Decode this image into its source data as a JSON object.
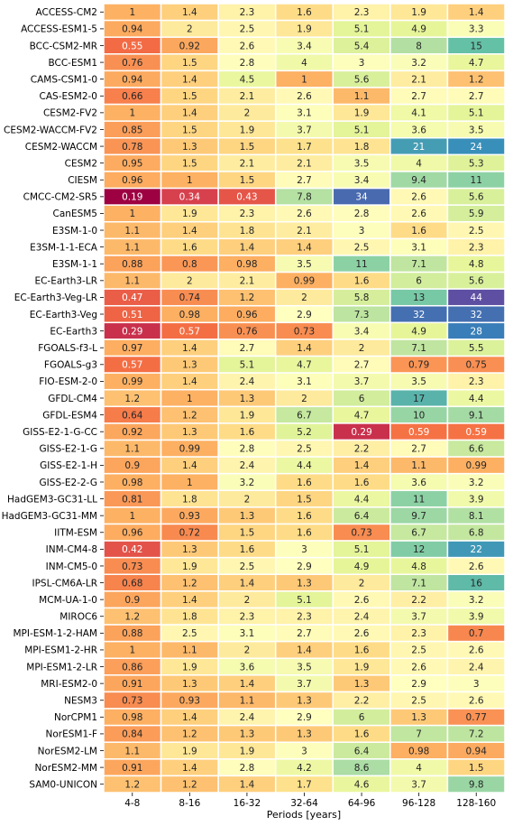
{
  "chart_data": {
    "type": "heatmap",
    "title": "",
    "xlabel": "Periods [years]",
    "ylabel": "",
    "x_categories": [
      "4-8",
      "8-16",
      "16-32",
      "32-64",
      "64-96",
      "96-128",
      "128-160"
    ],
    "y_categories": [
      "ACCESS-CM2",
      "ACCESS-ESM1-5",
      "BCC-CSM2-MR",
      "BCC-ESM1",
      "CAMS-CSM1-0",
      "CAS-ESM2-0",
      "CESM2-FV2",
      "CESM2-WACCM-FV2",
      "CESM2-WACCM",
      "CESM2",
      "CIESM",
      "CMCC-CM2-SR5",
      "CanESM5",
      "E3SM-1-0",
      "E3SM-1-1-ECA",
      "E3SM-1-1",
      "EC-Earth3-LR",
      "EC-Earth3-Veg-LR",
      "EC-Earth3-Veg",
      "EC-Earth3",
      "FGOALS-f3-L",
      "FGOALS-g3",
      "FIO-ESM-2-0",
      "GFDL-CM4",
      "GFDL-ESM4",
      "GISS-E2-1-G-CC",
      "GISS-E2-1-G",
      "GISS-E2-1-H",
      "GISS-E2-2-G",
      "HadGEM3-GC31-LL",
      "HadGEM3-GC31-MM",
      "IITM-ESM",
      "INM-CM4-8",
      "INM-CM5-0",
      "IPSL-CM6A-LR",
      "MCM-UA-1-0",
      "MIROC6",
      "MPI-ESM-1-2-HAM",
      "MPI-ESM1-2-HR",
      "MPI-ESM1-2-LR",
      "MRI-ESM2-0",
      "NESM3",
      "NorCPM1",
      "NorESM1-F",
      "NorESM2-LM",
      "NorESM2-MM",
      "SAM0-UNICON"
    ],
    "values": [
      [
        "1",
        "1.4",
        "2.3",
        "1.6",
        "2.3",
        "1.9",
        "1.4"
      ],
      [
        "0.94",
        "2",
        "2.5",
        "1.9",
        "5.1",
        "4.9",
        "3.3"
      ],
      [
        "0.55",
        "0.92",
        "2.6",
        "3.4",
        "5.4",
        "8",
        "15"
      ],
      [
        "0.76",
        "1.5",
        "2.8",
        "4",
        "3",
        "3.2",
        "4.7"
      ],
      [
        "0.94",
        "1.4",
        "4.5",
        "1",
        "5.6",
        "2.1",
        "1.2"
      ],
      [
        "0.66",
        "1.5",
        "2.1",
        "2.6",
        "1.1",
        "2.7",
        "2.7"
      ],
      [
        "1",
        "1.4",
        "2",
        "3.1",
        "1.9",
        "4.1",
        "5.1"
      ],
      [
        "0.85",
        "1.5",
        "1.9",
        "3.7",
        "5.1",
        "3.6",
        "3.5"
      ],
      [
        "0.78",
        "1.3",
        "1.5",
        "1.7",
        "1.8",
        "21",
        "24"
      ],
      [
        "0.95",
        "1.5",
        "2.1",
        "2.1",
        "3.5",
        "4",
        "5.3"
      ],
      [
        "0.96",
        "1",
        "1.5",
        "2.7",
        "3.4",
        "9.4",
        "11"
      ],
      [
        "0.19",
        "0.34",
        "0.43",
        "7.8",
        "34",
        "2.6",
        "5.6"
      ],
      [
        "1",
        "1.9",
        "2.3",
        "2.6",
        "2.8",
        "2.6",
        "5.9"
      ],
      [
        "1.1",
        "1.4",
        "1.8",
        "2.1",
        "3",
        "1.6",
        "2.5"
      ],
      [
        "1.1",
        "1.6",
        "1.4",
        "1.4",
        "2.5",
        "3.1",
        "2.3"
      ],
      [
        "0.88",
        "0.8",
        "0.98",
        "3.5",
        "11",
        "7.1",
        "4.8"
      ],
      [
        "1.1",
        "2",
        "2.1",
        "0.99",
        "1.6",
        "6",
        "5.6"
      ],
      [
        "0.47",
        "0.74",
        "1.2",
        "2",
        "5.8",
        "13",
        "44"
      ],
      [
        "0.51",
        "0.98",
        "0.96",
        "2.9",
        "7.3",
        "32",
        "32"
      ],
      [
        "0.29",
        "0.57",
        "0.76",
        "0.73",
        "3.4",
        "4.9",
        "28"
      ],
      [
        "0.97",
        "1.4",
        "2.7",
        "1.4",
        "2",
        "7.1",
        "5.5"
      ],
      [
        "0.57",
        "1.3",
        "5.1",
        "4.7",
        "2.7",
        "0.79",
        "0.75"
      ],
      [
        "0.99",
        "1.4",
        "2.4",
        "3.1",
        "3.7",
        "3.5",
        "2.3"
      ],
      [
        "1.2",
        "1",
        "1.3",
        "2",
        "6",
        "17",
        "4.4"
      ],
      [
        "0.64",
        "1.2",
        "1.9",
        "6.7",
        "4.7",
        "10",
        "9.1"
      ],
      [
        "0.92",
        "1.3",
        "1.6",
        "5.2",
        "0.29",
        "0.59",
        "0.59"
      ],
      [
        "1.1",
        "0.99",
        "2.8",
        "2.5",
        "2.2",
        "2.7",
        "6.6"
      ],
      [
        "0.9",
        "1.4",
        "2.4",
        "4.4",
        "1.4",
        "1.1",
        "0.99"
      ],
      [
        "0.98",
        "1",
        "3.2",
        "1.6",
        "1.6",
        "3.6",
        "3.2"
      ],
      [
        "0.81",
        "1.8",
        "2",
        "1.5",
        "4.4",
        "11",
        "3.9"
      ],
      [
        "1",
        "0.93",
        "1.3",
        "1.6",
        "6.4",
        "9.7",
        "8.1"
      ],
      [
        "0.96",
        "0.72",
        "1.5",
        "1.6",
        "0.73",
        "6.7",
        "6.8"
      ],
      [
        "0.42",
        "1.3",
        "1.6",
        "3",
        "5.1",
        "12",
        "22"
      ],
      [
        "0.73",
        "1.9",
        "2.5",
        "2.9",
        "4.9",
        "4.8",
        "2.6"
      ],
      [
        "0.68",
        "1.2",
        "1.4",
        "1.3",
        "2",
        "7.1",
        "16"
      ],
      [
        "0.9",
        "1.4",
        "2",
        "5.1",
        "2.6",
        "2.2",
        "3.2"
      ],
      [
        "1.2",
        "1.8",
        "2.3",
        "2.3",
        "2.4",
        "3.7",
        "3.9"
      ],
      [
        "0.88",
        "2.5",
        "3.1",
        "2.7",
        "2.6",
        "2.3",
        "0.7"
      ],
      [
        "1",
        "1.1",
        "2",
        "1.4",
        "1.6",
        "2.5",
        "2.6"
      ],
      [
        "0.86",
        "1.9",
        "3.6",
        "3.5",
        "1.9",
        "2.6",
        "2.4"
      ],
      [
        "0.91",
        "1.3",
        "1.4",
        "3.7",
        "1.3",
        "2.9",
        "3"
      ],
      [
        "0.73",
        "0.93",
        "1.1",
        "1.3",
        "2.2",
        "2.5",
        "2.6"
      ],
      [
        "0.98",
        "1.4",
        "2.4",
        "2.9",
        "6",
        "1.3",
        "0.77"
      ],
      [
        "0.84",
        "1.2",
        "1.3",
        "1.3",
        "1.6",
        "7",
        "7.2"
      ],
      [
        "1.1",
        "1.9",
        "1.9",
        "3",
        "6.4",
        "0.98",
        "0.94"
      ],
      [
        "0.91",
        "1.4",
        "2.8",
        "4.2",
        "8.6",
        "4",
        "1.5"
      ],
      [
        "1.2",
        "1.2",
        "1.4",
        "1.7",
        "4.6",
        "3.7",
        "9.8"
      ]
    ],
    "colormap": "Spectral",
    "color_scale": "log",
    "color_range": [
      0.19,
      44
    ],
    "grid": false,
    "legend": "none",
    "cell_separator_color": "#ffffff"
  }
}
